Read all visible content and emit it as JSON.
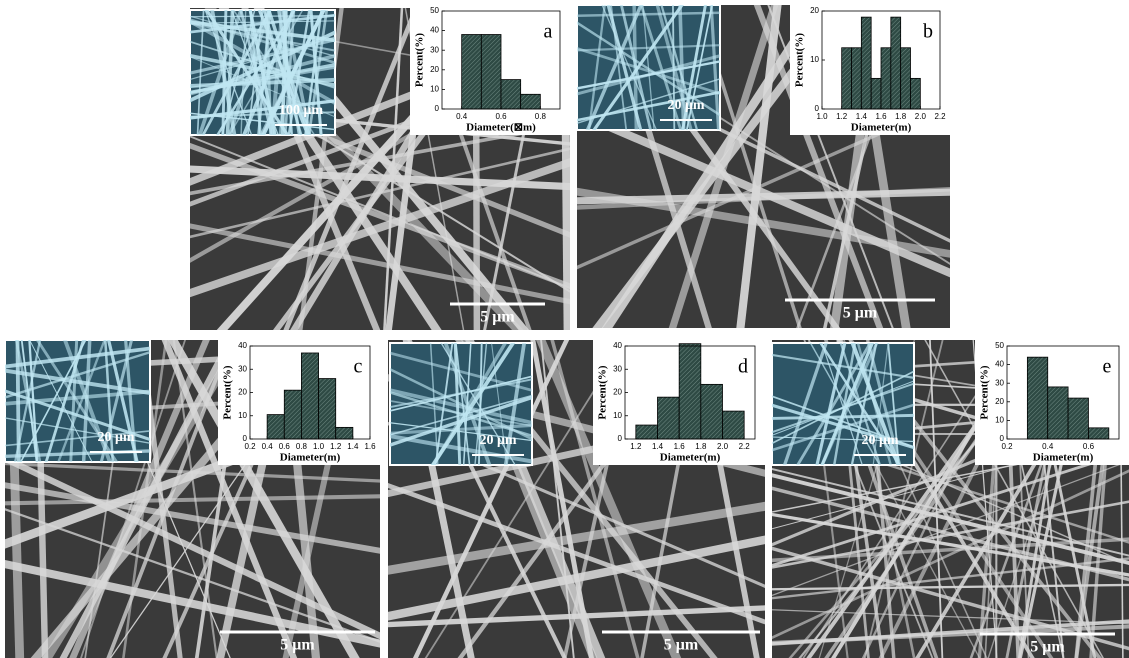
{
  "chart_data": [
    {
      "type": "histogram",
      "panel_label": "a",
      "inset_scale_label": "100 μm",
      "scale_label": "5 μm",
      "ylabel": "Percent(%)",
      "xlabel": "Diameter(⊠m)",
      "color": "#2e4a44",
      "bins": [
        0.4,
        0.5,
        0.6,
        0.7,
        0.8
      ],
      "values": [
        38,
        38,
        15,
        7.5
      ],
      "xlim": [
        0.3,
        0.9
      ],
      "xticks": [
        0.4,
        0.6,
        0.8
      ],
      "ylim": [
        0,
        50
      ],
      "yticks": [
        0,
        10,
        20,
        30,
        40,
        50
      ]
    },
    {
      "type": "histogram",
      "panel_label": "b",
      "inset_scale_label": "20 μm",
      "scale_label": "5 μm",
      "ylabel": "Percent(%)",
      "xlabel": "Diameter(m)",
      "color": "#2e4a44",
      "bins": [
        1.2,
        1.3,
        1.4,
        1.5,
        1.6,
        1.7,
        1.8,
        1.9,
        2.0
      ],
      "values": [
        12.5,
        12.5,
        18.75,
        6.25,
        12.5,
        18.75,
        12.5,
        6.25
      ],
      "xlim": [
        1.0,
        2.2
      ],
      "xticks": [
        {
          "value": 1.0,
          "label": "1.0"
        },
        1.2,
        1.4,
        1.6,
        1.8,
        {
          "value": 2.0,
          "label": "2.0"
        },
        2.2
      ],
      "ylim": [
        0,
        20
      ],
      "yticks": [
        0,
        10,
        20
      ]
    },
    {
      "type": "histogram",
      "panel_label": "c",
      "inset_scale_label": "20 μm",
      "scale_label": "5 μm",
      "ylabel": "Percent(%)",
      "xlabel": "Diameter(m)",
      "color": "#2e4a44",
      "bins": [
        0.4,
        0.6,
        0.8,
        1.0,
        1.2,
        1.4
      ],
      "values": [
        10.5,
        21,
        37,
        26,
        5
      ],
      "xlim": [
        0.2,
        1.6
      ],
      "xticks": [
        0.2,
        0.4,
        0.6,
        0.8,
        {
          "value": 1.0,
          "label": "1.0"
        },
        1.2,
        1.4,
        1.6
      ],
      "ylim": [
        0,
        40
      ],
      "yticks": [
        0,
        10,
        20,
        30,
        40
      ]
    },
    {
      "type": "histogram",
      "panel_label": "d",
      "inset_scale_label": "20 μm",
      "scale_label": "5 μm",
      "ylabel": "Percent(%)",
      "xlabel": "Diameter(m)",
      "color": "#2e4a44",
      "bins": [
        1.2,
        1.4,
        1.6,
        1.8,
        2.0,
        2.2
      ],
      "values": [
        6,
        18,
        41,
        23.5,
        12
      ],
      "xlim": [
        1.1,
        2.3
      ],
      "xticks": [
        1.2,
        1.4,
        1.6,
        1.8,
        {
          "value": 2.0,
          "label": "2.0"
        },
        2.2
      ],
      "ylim": [
        0,
        40
      ],
      "yticks": [
        0,
        10,
        20,
        30,
        40
      ]
    },
    {
      "type": "histogram",
      "panel_label": "e",
      "inset_scale_label": "20 μm",
      "scale_label": "5 μm",
      "ylabel": "Percent(%)",
      "xlabel": "Diameter(m)",
      "color": "#2e4a44",
      "bins": [
        0.3,
        0.4,
        0.5,
        0.6,
        0.7
      ],
      "values": [
        44,
        28,
        22,
        6
      ],
      "xlim": [
        0.2,
        0.75
      ],
      "xticks": [
        0.2,
        0.4,
        0.6
      ],
      "ylim": [
        0,
        50
      ],
      "yticks": [
        0,
        10,
        20,
        30,
        40,
        50
      ]
    }
  ]
}
